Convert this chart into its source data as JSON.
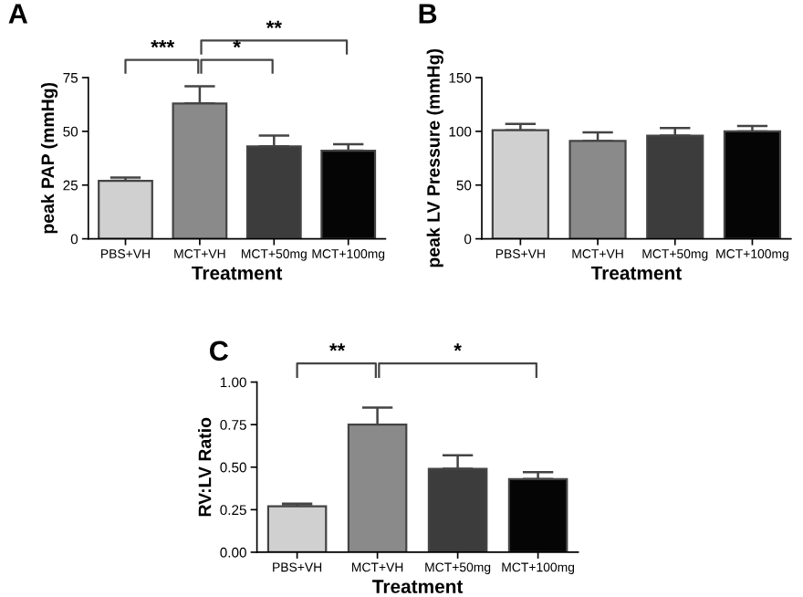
{
  "chart_data": [
    {
      "type": "bar",
      "title": "A",
      "xlabel": "Treatment",
      "ylabel": "peak PAP (mmHg)",
      "categories": [
        "PBS+VH",
        "MCT+VH",
        "MCT+50mg",
        "MCT+100mg"
      ],
      "values": [
        27,
        63,
        43,
        41
      ],
      "errors": [
        [
          27,
          28.5
        ],
        [
          63,
          71
        ],
        [
          43,
          48
        ],
        [
          41,
          44
        ]
      ],
      "colors": [
        "#d0d0d0",
        "#8a8a8a",
        "#3c3c3c",
        "#050505"
      ],
      "ylim": [
        0,
        75
      ],
      "yticks": [
        0,
        25,
        50,
        75
      ],
      "grid": false,
      "annotations": [
        "***",
        "*",
        "**"
      ]
    },
    {
      "type": "bar",
      "title": "B",
      "xlabel": "Treatment",
      "ylabel": "peak LV Pressure (mmHg)",
      "categories": [
        "PBS+VH",
        "MCT+VH",
        "MCT+50mg",
        "MCT+100mg"
      ],
      "values": [
        101,
        91,
        96,
        100
      ],
      "errors": [
        [
          101,
          107
        ],
        [
          91,
          99
        ],
        [
          96,
          103
        ],
        [
          100,
          105
        ]
      ],
      "colors": [
        "#d0d0d0",
        "#8a8a8a",
        "#3c3c3c",
        "#050505"
      ],
      "ylim": [
        0,
        150
      ],
      "yticks": [
        0,
        50,
        100,
        150
      ],
      "grid": false
    },
    {
      "type": "bar",
      "title": "C",
      "xlabel": "Treatment",
      "ylabel": "RV:LV Ratio",
      "categories": [
        "PBS+VH",
        "MCT+VH",
        "MCT+50mg",
        "MCT+100mg"
      ],
      "values": [
        0.27,
        0.75,
        0.49,
        0.43
      ],
      "errors": [
        [
          0.27,
          0.285
        ],
        [
          0.75,
          0.85
        ],
        [
          0.49,
          0.57
        ],
        [
          0.43,
          0.47
        ]
      ],
      "colors": [
        "#d0d0d0",
        "#8a8a8a",
        "#3c3c3c",
        "#050505"
      ],
      "ylim": [
        0,
        1
      ],
      "yticks": [
        {
          "value": 0,
          "label": "0.00"
        },
        {
          "value": 0.25,
          "label": "0.25"
        },
        {
          "value": 0.5,
          "label": "0.50"
        },
        {
          "value": 0.75,
          "label": "0.75"
        },
        {
          "value": 1,
          "label": "1.00"
        }
      ],
      "grid": false,
      "annotations": [
        "**",
        "*"
      ]
    }
  ]
}
